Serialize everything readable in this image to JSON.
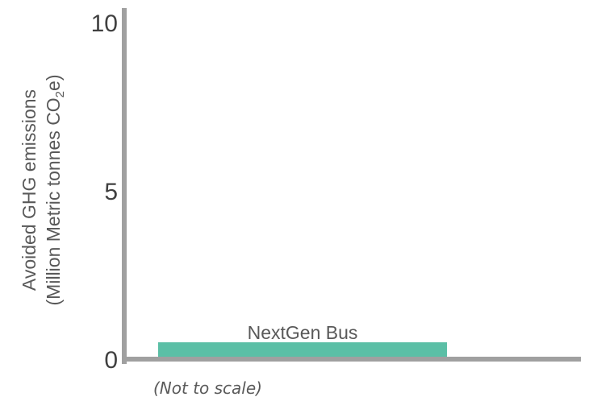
{
  "chart_data": {
    "type": "bar",
    "categories": [
      "NextGen Bus"
    ],
    "values": [
      0.5
    ],
    "ylim": [
      0,
      10
    ],
    "yticks": [
      "0",
      "5",
      "10"
    ],
    "ylabel": {
      "line1": "Avoided GHG emissions",
      "line2_prefix": "(Million Metric tonnes CO",
      "line2_subscript": "2",
      "line2_suffix": "e)"
    },
    "note": "(Not to scale)",
    "grid": false,
    "legend": "none",
    "colors": {
      "bar": "#5bbfa6",
      "axis": "#a0a0a0"
    }
  }
}
